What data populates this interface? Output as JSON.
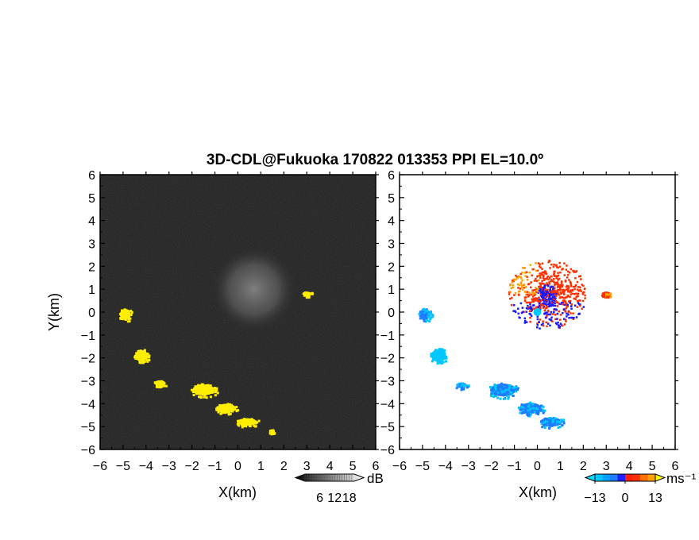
{
  "title": "3D-CDL@Fukuoka 170822 013353 PPI EL=10.0º",
  "chart_data": [
    {
      "type": "heatmap",
      "panel": "reflectivity",
      "xlabel": "X(km)",
      "ylabel": "Y(km)",
      "xlim": [
        -6,
        6
      ],
      "ylim": [
        -6,
        6
      ],
      "xticks": [
        "−6",
        "−5",
        "−4",
        "−3",
        "−2",
        "−1",
        "0",
        "1",
        "2",
        "3",
        "4",
        "5",
        "6"
      ],
      "yticks": [
        "6",
        "5",
        "4",
        "3",
        "2",
        "1",
        "0",
        "−1",
        "−2",
        "−3",
        "−4",
        "−5",
        "−6"
      ],
      "colorbar": {
        "label": "dB",
        "ticks": [
          "6",
          "12",
          "18"
        ],
        "range": [
          0,
          20
        ]
      },
      "background_color": "#1e1e1e",
      "echo_color": "#ffee00",
      "clutter_region": {
        "center": [
          0.7,
          1.0
        ],
        "radius_km": 1.8
      },
      "echo_regions": [
        {
          "x": -4.9,
          "y": -0.1,
          "rx": 0.3,
          "ry": 0.3
        },
        {
          "x": -4.2,
          "y": -1.9,
          "rx": 0.35,
          "ry": 0.3
        },
        {
          "x": -3.4,
          "y": -3.1,
          "rx": 0.3,
          "ry": 0.15
        },
        {
          "x": -1.5,
          "y": -3.4,
          "rx": 0.6,
          "ry": 0.3
        },
        {
          "x": -0.5,
          "y": -4.2,
          "rx": 0.5,
          "ry": 0.25
        },
        {
          "x": 0.4,
          "y": -4.8,
          "rx": 0.55,
          "ry": 0.2
        },
        {
          "x": 1.45,
          "y": -5.2,
          "rx": 0.12,
          "ry": 0.1
        },
        {
          "x": 3.0,
          "y": 0.8,
          "rx": 0.25,
          "ry": 0.12
        }
      ]
    },
    {
      "type": "heatmap",
      "panel": "doppler-velocity",
      "xlabel": "X(km)",
      "xlim": [
        -6,
        6
      ],
      "ylim": [
        -6,
        6
      ],
      "xticks": [
        "−6",
        "−5",
        "−4",
        "−3",
        "−2",
        "−1",
        "0",
        "1",
        "2",
        "3",
        "4",
        "5",
        "6"
      ],
      "yticks": [
        "6",
        "5",
        "4",
        "3",
        "2",
        "1",
        "0",
        "−1",
        "−2",
        "−3",
        "−4",
        "−5",
        "−6"
      ],
      "colorbar": {
        "label": "ms⁻¹",
        "ticks": [
          "−13",
          "0",
          "13"
        ],
        "range": [
          -13,
          13
        ]
      },
      "colors": {
        "far_negative": "#00c8ff",
        "negative": "#1e7cff",
        "near_zero_neg": "#1a1aff",
        "positive": "#ff3000",
        "far_positive": "#ffa000"
      },
      "echo_regions": [
        {
          "x": -4.9,
          "y": -0.1,
          "rx": 0.3,
          "ry": 0.3,
          "velocity": -9
        },
        {
          "x": -4.3,
          "y": -1.9,
          "rx": 0.4,
          "ry": 0.35,
          "velocity": -11
        },
        {
          "x": -3.3,
          "y": -3.2,
          "rx": 0.3,
          "ry": 0.15,
          "velocity": -8
        },
        {
          "x": -1.5,
          "y": -3.4,
          "rx": 0.7,
          "ry": 0.35,
          "velocity": -7
        },
        {
          "x": -0.3,
          "y": -4.2,
          "rx": 0.6,
          "ry": 0.3,
          "velocity": -8
        },
        {
          "x": 0.6,
          "y": -4.8,
          "rx": 0.6,
          "ry": 0.25,
          "velocity": -9
        },
        {
          "x": 3.0,
          "y": 0.8,
          "rx": 0.25,
          "ry": 0.12,
          "velocity": 6
        }
      ],
      "near_field": {
        "center": [
          0.4,
          0.8
        ],
        "radius_km": 1.7
      }
    }
  ]
}
